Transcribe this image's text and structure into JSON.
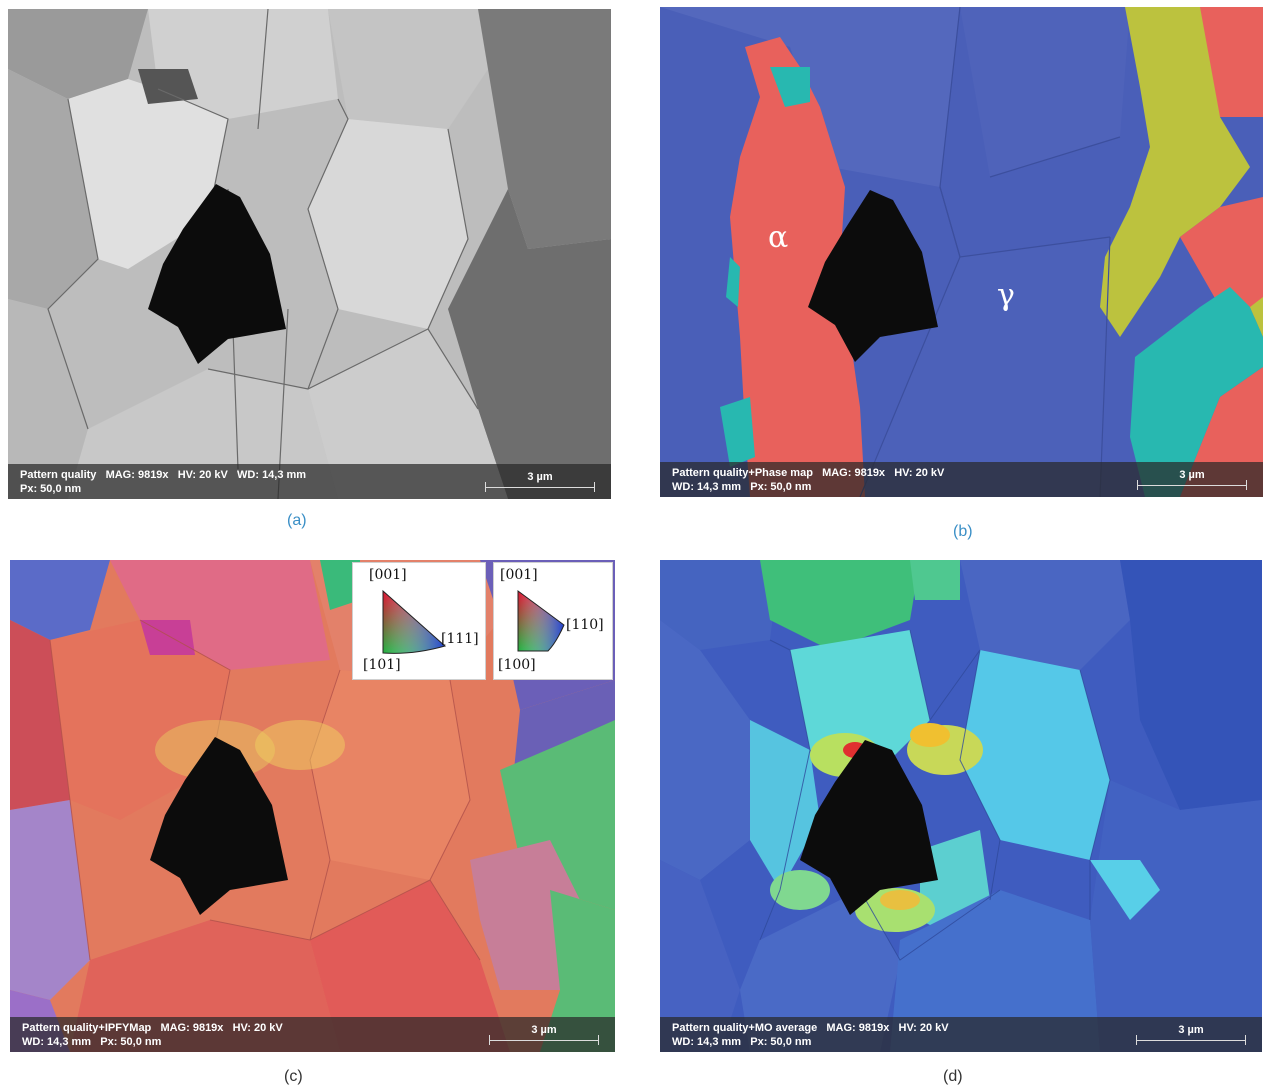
{
  "panels": {
    "a": {
      "info_line1": "Pattern quality   MAG: 9819x   HV: 20 kV   WD: 14,3 mm",
      "info_line2": "Px: 50,0 nm",
      "scale": "3 µm",
      "caption": "(a)"
    },
    "b": {
      "info_line1": "Pattern quality+Phase map   MAG: 9819x   HV: 20 kV",
      "info_line2": "WD: 14,3 mm   Px: 50,0 nm",
      "scale": "3 µm",
      "caption": "(b)",
      "phase_alpha": "α",
      "phase_gamma": "γ"
    },
    "c": {
      "info_line1": "Pattern quality+IPFYMap   MAG: 9819x   HV: 20 kV",
      "info_line2": "WD: 14,3 mm   Px: 50,0 nm",
      "scale": "3 µm",
      "caption": "(c)",
      "legend_fcc": {
        "top": "[001]",
        "right": "[111]",
        "bottom": "[101]"
      },
      "legend_bcc": {
        "top": "[001]",
        "right": "[110]",
        "bottom": "[100]"
      }
    },
    "d": {
      "info_line1": "Pattern quality+MO average   MAG: 9819x   HV: 20 kV",
      "info_line2": "WD: 14,3 mm   Px: 50,0 nm",
      "scale": "3 µm",
      "caption": "(d)"
    }
  },
  "colors": {
    "caption_blue": "#3a8fc6",
    "phase_gamma_blue": "#4a5fb8",
    "phase_alpha_red": "#e8615c",
    "indent_black": "#0c0c0c"
  }
}
